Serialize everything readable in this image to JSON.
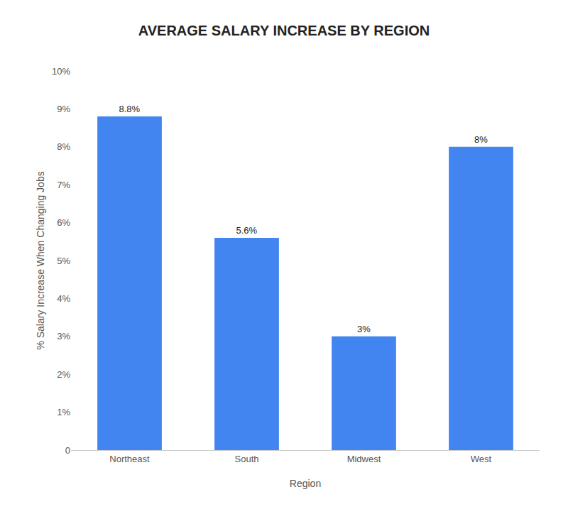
{
  "chart_data": {
    "type": "bar",
    "title": "AVERAGE SALARY INCREASE BY REGION",
    "categories": [
      "Northeast",
      "South",
      "Midwest",
      "West"
    ],
    "values": [
      8.8,
      5.6,
      3.0,
      8.0
    ],
    "value_labels": [
      "8.8%",
      "5.6%",
      "3%",
      "8%"
    ],
    "data_labels": true,
    "color": "#4285f0",
    "xlabel": "Region",
    "ylabel": "% Salary Increase When Changing Jobs",
    "ylim": [
      0,
      10
    ],
    "yticks": [
      0,
      {
        "value": 1,
        "label": "1%"
      },
      {
        "value": 2,
        "label": "2%"
      },
      {
        "value": 3,
        "label": "3%"
      },
      {
        "value": 4,
        "label": "4%"
      },
      {
        "value": 5,
        "label": "5%"
      },
      {
        "value": 6,
        "label": "6%"
      },
      {
        "value": 7,
        "label": "7%"
      },
      {
        "value": 8,
        "label": "8%"
      },
      {
        "value": 9,
        "label": "9%"
      },
      {
        "value": 10,
        "label": "10%"
      }
    ],
    "grid": false
  }
}
